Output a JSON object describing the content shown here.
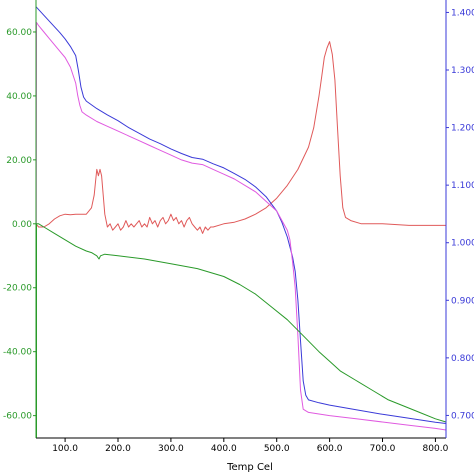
{
  "chart_data": {
    "type": "line",
    "xlabel": "Temp Cel",
    "xlim": [
      45,
      820
    ],
    "x_ticks": [
      100,
      200,
      300,
      400,
      500,
      600,
      700,
      800
    ],
    "x_tick_labels": [
      "100.0",
      "200.0",
      "300.0",
      "400.0",
      "500.0",
      "600.0",
      "700.0",
      "800.0"
    ],
    "left_axis": {
      "color": "#2a9a2a",
      "ylim": [
        -67,
        70
      ],
      "ticks": [
        60,
        40,
        20,
        0,
        -20,
        -40,
        -60
      ],
      "tick_labels": [
        "60.00",
        "40.00",
        "20.00",
        "0.00",
        "-20.00",
        "-40.00",
        "-60.00"
      ]
    },
    "right_axis": {
      "color": "#3a3ad8",
      "ylim": [
        0.6608,
        1.4216
      ],
      "ticks": [
        1.4,
        1.3,
        1.2,
        1.1,
        1.0,
        0.9,
        0.8,
        0.7
      ],
      "tick_labels": [
        "1.400",
        "1.300",
        "1.200",
        "1.100",
        "1.000",
        "0.900",
        "0.800",
        "0.700"
      ]
    },
    "series": [
      {
        "color": "#e05a5a",
        "axis": "left",
        "points": [
          [
            45,
            -67
          ],
          [
            45,
            0
          ],
          [
            50,
            -1
          ],
          [
            60,
            -1
          ],
          [
            70,
            0
          ],
          [
            80,
            1.5
          ],
          [
            90,
            2.5
          ],
          [
            100,
            3
          ],
          [
            110,
            2.8
          ],
          [
            120,
            3
          ],
          [
            130,
            3
          ],
          [
            140,
            3
          ],
          [
            150,
            5
          ],
          [
            155,
            9
          ],
          [
            158,
            14
          ],
          [
            160,
            17
          ],
          [
            163,
            15
          ],
          [
            166,
            17
          ],
          [
            169,
            15
          ],
          [
            172,
            9
          ],
          [
            175,
            3
          ],
          [
            180,
            -1
          ],
          [
            185,
            0
          ],
          [
            190,
            -2
          ],
          [
            195,
            -1
          ],
          [
            200,
            0
          ],
          [
            205,
            -2
          ],
          [
            210,
            -1
          ],
          [
            215,
            1
          ],
          [
            220,
            -1
          ],
          [
            225,
            0
          ],
          [
            230,
            -1
          ],
          [
            235,
            0
          ],
          [
            240,
            1
          ],
          [
            245,
            -1
          ],
          [
            250,
            0
          ],
          [
            255,
            -1
          ],
          [
            260,
            2
          ],
          [
            265,
            0
          ],
          [
            270,
            1
          ],
          [
            275,
            -1
          ],
          [
            280,
            1
          ],
          [
            285,
            2
          ],
          [
            290,
            0
          ],
          [
            295,
            1
          ],
          [
            300,
            3
          ],
          [
            305,
            1
          ],
          [
            310,
            2
          ],
          [
            315,
            0
          ],
          [
            320,
            1
          ],
          [
            325,
            -1
          ],
          [
            330,
            1
          ],
          [
            335,
            2
          ],
          [
            340,
            0
          ],
          [
            345,
            -1
          ],
          [
            350,
            -2
          ],
          [
            355,
            -1
          ],
          [
            360,
            -3
          ],
          [
            365,
            -1
          ],
          [
            370,
            -2
          ],
          [
            375,
            -1
          ],
          [
            380,
            -1
          ],
          [
            400,
            0
          ],
          [
            420,
            0.5
          ],
          [
            440,
            1.5
          ],
          [
            460,
            3
          ],
          [
            480,
            5
          ],
          [
            500,
            8
          ],
          [
            520,
            12
          ],
          [
            540,
            17
          ],
          [
            560,
            24
          ],
          [
            570,
            30
          ],
          [
            580,
            40
          ],
          [
            585,
            46
          ],
          [
            590,
            52
          ],
          [
            595,
            55
          ],
          [
            600,
            57
          ],
          [
            605,
            53
          ],
          [
            610,
            45
          ],
          [
            615,
            30
          ],
          [
            620,
            15
          ],
          [
            625,
            5
          ],
          [
            630,
            2
          ],
          [
            640,
            1
          ],
          [
            660,
            0
          ],
          [
            700,
            0
          ],
          [
            750,
            -0.5
          ],
          [
            800,
            -0.5
          ],
          [
            820,
            -0.5
          ]
        ]
      },
      {
        "color": "#3a3ad8",
        "axis": "right",
        "points": [
          [
            45,
            1.41
          ],
          [
            60,
            1.395
          ],
          [
            80,
            1.375
          ],
          [
            90,
            1.365
          ],
          [
            100,
            1.354
          ],
          [
            110,
            1.341
          ],
          [
            120,
            1.325
          ],
          [
            125,
            1.3
          ],
          [
            130,
            1.27
          ],
          [
            135,
            1.253
          ],
          [
            140,
            1.246
          ],
          [
            160,
            1.233
          ],
          [
            180,
            1.222
          ],
          [
            200,
            1.212
          ],
          [
            220,
            1.2
          ],
          [
            240,
            1.19
          ],
          [
            260,
            1.18
          ],
          [
            280,
            1.172
          ],
          [
            300,
            1.163
          ],
          [
            320,
            1.155
          ],
          [
            340,
            1.148
          ],
          [
            360,
            1.145
          ],
          [
            380,
            1.137
          ],
          [
            400,
            1.13
          ],
          [
            420,
            1.12
          ],
          [
            440,
            1.11
          ],
          [
            460,
            1.097
          ],
          [
            480,
            1.08
          ],
          [
            500,
            1.055
          ],
          [
            510,
            1.035
          ],
          [
            520,
            1.01
          ],
          [
            530,
            0.975
          ],
          [
            535,
            0.95
          ],
          [
            540,
            0.9
          ],
          [
            545,
            0.83
          ],
          [
            550,
            0.76
          ],
          [
            555,
            0.735
          ],
          [
            560,
            0.727
          ],
          [
            580,
            0.722
          ],
          [
            600,
            0.718
          ],
          [
            650,
            0.71
          ],
          [
            700,
            0.702
          ],
          [
            750,
            0.695
          ],
          [
            800,
            0.688
          ],
          [
            820,
            0.686
          ]
        ]
      },
      {
        "color": "#e05ae0",
        "axis": "left",
        "points": [
          [
            45,
            -67
          ],
          [
            46,
            63
          ],
          [
            50,
            62
          ],
          [
            60,
            60
          ],
          [
            70,
            58
          ],
          [
            80,
            56
          ],
          [
            90,
            54
          ],
          [
            100,
            52
          ],
          [
            110,
            49
          ],
          [
            120,
            44
          ],
          [
            124,
            40
          ],
          [
            128,
            37
          ],
          [
            132,
            35
          ],
          [
            140,
            34
          ],
          [
            160,
            32
          ],
          [
            180,
            30.5
          ],
          [
            200,
            29
          ],
          [
            220,
            27.5
          ],
          [
            240,
            26
          ],
          [
            260,
            24.5
          ],
          [
            280,
            23
          ],
          [
            300,
            21.5
          ],
          [
            320,
            20
          ],
          [
            340,
            19
          ],
          [
            360,
            18.5
          ],
          [
            380,
            17
          ],
          [
            400,
            15.5
          ],
          [
            420,
            14
          ],
          [
            440,
            12
          ],
          [
            460,
            10
          ],
          [
            480,
            7
          ],
          [
            500,
            4
          ],
          [
            520,
            -2
          ],
          [
            525,
            -5
          ],
          [
            530,
            -12
          ],
          [
            535,
            -20
          ],
          [
            540,
            -35
          ],
          [
            545,
            -52
          ],
          [
            550,
            -58
          ],
          [
            555,
            -58.5
          ],
          [
            560,
            -59
          ],
          [
            580,
            -59.5
          ],
          [
            600,
            -60
          ],
          [
            650,
            -61
          ],
          [
            700,
            -62
          ],
          [
            750,
            -63
          ],
          [
            800,
            -64
          ],
          [
            820,
            -64.5
          ]
        ]
      },
      {
        "color": "#2a9a2a",
        "axis": "left",
        "points": [
          [
            46,
            -67
          ],
          [
            46,
            0
          ],
          [
            50,
            0
          ],
          [
            60,
            -1
          ],
          [
            80,
            -3
          ],
          [
            100,
            -5
          ],
          [
            120,
            -7
          ],
          [
            140,
            -8.5
          ],
          [
            150,
            -9
          ],
          [
            160,
            -10
          ],
          [
            164,
            -11
          ],
          [
            167,
            -10
          ],
          [
            175,
            -9.5
          ],
          [
            200,
            -10
          ],
          [
            250,
            -11
          ],
          [
            300,
            -12.5
          ],
          [
            350,
            -14
          ],
          [
            400,
            -16.5
          ],
          [
            430,
            -19
          ],
          [
            460,
            -22
          ],
          [
            490,
            -26
          ],
          [
            520,
            -30
          ],
          [
            550,
            -35
          ],
          [
            580,
            -40
          ],
          [
            600,
            -43
          ],
          [
            620,
            -46
          ],
          [
            650,
            -49
          ],
          [
            680,
            -52
          ],
          [
            710,
            -55
          ],
          [
            740,
            -57
          ],
          [
            770,
            -59
          ],
          [
            800,
            -61
          ],
          [
            820,
            -62
          ]
        ]
      }
    ]
  }
}
